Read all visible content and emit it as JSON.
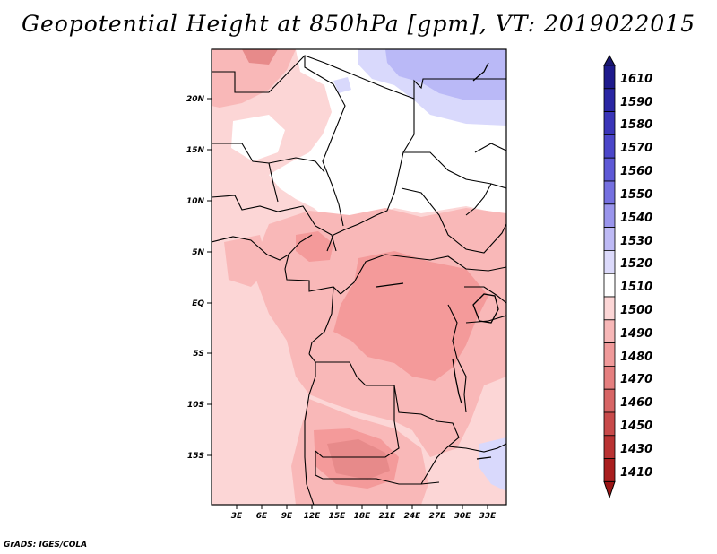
{
  "title": "Geopotential Height at 850hPa [gpm], VT: 2019022015",
  "credit": "GrADS: IGES/COLA",
  "map": {
    "lat_labels": [
      "20N",
      "15N",
      "10N",
      "5N",
      "EQ",
      "5S",
      "10S",
      "15S"
    ],
    "lon_labels": [
      "3E",
      "6E",
      "9E",
      "12E",
      "15E",
      "18E",
      "21E",
      "24E",
      "27E",
      "30E",
      "33E"
    ],
    "fields": [
      {
        "name": "background-1500-1510",
        "color": "#fcd6d6"
      },
      {
        "name": "region-1510-1520",
        "color": "#ffffff"
      },
      {
        "name": "region-1490-1500",
        "color": "#f9b8b8"
      },
      {
        "name": "region-1480-1490",
        "color": "#f49a9a"
      },
      {
        "name": "region-1470-1480",
        "color": "#e78a8a"
      },
      {
        "name": "region-1520-1530",
        "color": "#d9d9fc"
      },
      {
        "name": "region-1530-1540",
        "color": "#bab9f7"
      }
    ]
  },
  "colorbar": {
    "levels": [
      "1610",
      "1590",
      "1580",
      "1570",
      "1560",
      "1550",
      "1540",
      "1530",
      "1520",
      "1510",
      "1500",
      "1490",
      "1480",
      "1470",
      "1460",
      "1450",
      "1430",
      "1410"
    ],
    "colors": [
      "#1e1a8c",
      "#2a26a3",
      "#3a35b8",
      "#4b46c9",
      "#5e59d6",
      "#7570e0",
      "#9a95ec",
      "#bebaf5",
      "#dcdafb",
      "#ffffff",
      "#fcd6d6",
      "#f7b7b7",
      "#f09a9a",
      "#e57f7f",
      "#d76565",
      "#c84a4a",
      "#b93232",
      "#a91e1e"
    ]
  }
}
